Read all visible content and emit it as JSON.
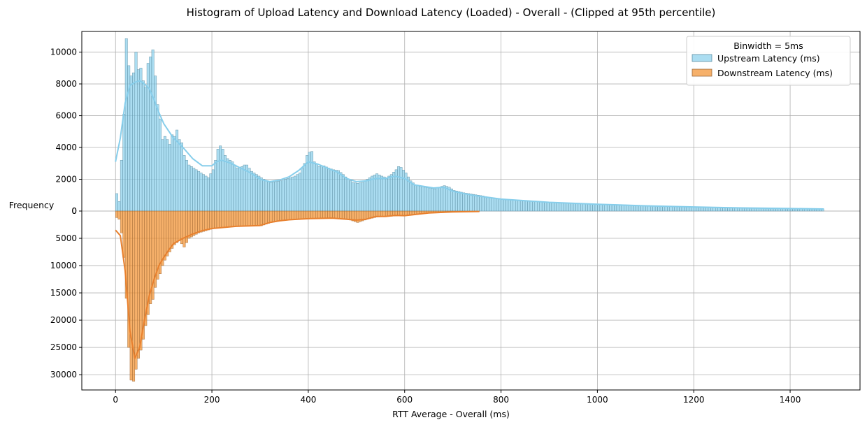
{
  "chart_data": {
    "type": "bar",
    "title": "Histogram of Upload Latency and Download Latency (Loaded)  - Overall - (Clipped at 95th percentile)",
    "xlabel": "RTT Average - Overall (ms)",
    "ylabel": "Frequency",
    "xlim": [
      -70,
      1545
    ],
    "upper_ylim": [
      0,
      11300
    ],
    "lower_ylim": [
      0,
      32800
    ],
    "binwidth": 5,
    "x_ticks": [
      0,
      200,
      400,
      600,
      800,
      1000,
      1200,
      1400
    ],
    "upper_y_ticks": [
      0,
      2000,
      4000,
      6000,
      8000,
      10000
    ],
    "lower_y_ticks": [
      0,
      5000,
      10000,
      15000,
      20000,
      25000,
      30000
    ],
    "grid": true,
    "legend": {
      "title": "Binwidth = 5ms",
      "placement": "top-right"
    },
    "series": [
      {
        "name": "Upstream Latency (ms)",
        "direction": "up",
        "color": "#87CEEB",
        "edge_color": "#5f8fa3",
        "kde_color": "#87CEEB",
        "x_range": [
          0,
          1470
        ],
        "kde": [
          [
            0,
            3100
          ],
          [
            10,
            4600
          ],
          [
            20,
            6800
          ],
          [
            30,
            7900
          ],
          [
            40,
            8100
          ],
          [
            50,
            8200
          ],
          [
            60,
            8000
          ],
          [
            70,
            7700
          ],
          [
            80,
            7000
          ],
          [
            90,
            6200
          ],
          [
            100,
            5500
          ],
          [
            120,
            4600
          ],
          [
            140,
            4000
          ],
          [
            160,
            3300
          ],
          [
            180,
            2850
          ],
          [
            200,
            2850
          ],
          [
            210,
            3100
          ],
          [
            220,
            3200
          ],
          [
            240,
            3000
          ],
          [
            260,
            2700
          ],
          [
            280,
            2400
          ],
          [
            300,
            2000
          ],
          [
            320,
            1850
          ],
          [
            340,
            1950
          ],
          [
            360,
            2150
          ],
          [
            380,
            2550
          ],
          [
            400,
            3100
          ],
          [
            420,
            2950
          ],
          [
            440,
            2700
          ],
          [
            460,
            2450
          ],
          [
            480,
            2050
          ],
          [
            500,
            1850
          ],
          [
            520,
            1900
          ],
          [
            540,
            2050
          ],
          [
            560,
            2050
          ],
          [
            580,
            2200
          ],
          [
            600,
            2050
          ],
          [
            620,
            1650
          ],
          [
            640,
            1550
          ],
          [
            660,
            1450
          ],
          [
            680,
            1500
          ],
          [
            700,
            1250
          ],
          [
            740,
            1000
          ],
          [
            800,
            750
          ],
          [
            900,
            550
          ],
          [
            1000,
            430
          ],
          [
            1100,
            330
          ],
          [
            1200,
            260
          ],
          [
            1300,
            200
          ],
          [
            1400,
            160
          ],
          [
            1470,
            130
          ]
        ],
        "bin_points": [
          [
            0,
            1100
          ],
          [
            5,
            600
          ],
          [
            10,
            3200
          ],
          [
            15,
            6100
          ],
          [
            20,
            10850
          ],
          [
            25,
            9150
          ],
          [
            30,
            8500
          ],
          [
            35,
            8700
          ],
          [
            40,
            10000
          ],
          [
            45,
            8900
          ],
          [
            50,
            9000
          ],
          [
            55,
            8200
          ],
          [
            60,
            7800
          ],
          [
            65,
            9300
          ],
          [
            70,
            9700
          ],
          [
            75,
            10150
          ],
          [
            80,
            8500
          ],
          [
            85,
            6700
          ],
          [
            90,
            5800
          ],
          [
            95,
            4500
          ],
          [
            100,
            4700
          ],
          [
            105,
            4500
          ],
          [
            110,
            4200
          ],
          [
            115,
            4800
          ],
          [
            120,
            4700
          ],
          [
            125,
            5100
          ],
          [
            130,
            4500
          ],
          [
            135,
            4300
          ],
          [
            140,
            3500
          ],
          [
            145,
            3200
          ],
          [
            150,
            2900
          ],
          [
            160,
            2700
          ],
          [
            170,
            2500
          ],
          [
            180,
            2300
          ],
          [
            190,
            2100
          ],
          [
            200,
            2600
          ],
          [
            205,
            3200
          ],
          [
            210,
            3900
          ],
          [
            215,
            4100
          ],
          [
            220,
            3900
          ],
          [
            225,
            3500
          ],
          [
            230,
            3300
          ],
          [
            240,
            3100
          ],
          [
            250,
            2700
          ],
          [
            260,
            2800
          ],
          [
            265,
            2900
          ],
          [
            270,
            2900
          ],
          [
            280,
            2500
          ],
          [
            290,
            2300
          ],
          [
            300,
            2100
          ],
          [
            310,
            1900
          ],
          [
            320,
            1800
          ],
          [
            330,
            1850
          ],
          [
            340,
            1900
          ],
          [
            350,
            2000
          ],
          [
            360,
            2100
          ],
          [
            370,
            2200
          ],
          [
            380,
            2400
          ],
          [
            390,
            3000
          ],
          [
            395,
            3500
          ],
          [
            400,
            3700
          ],
          [
            405,
            3750
          ],
          [
            410,
            3100
          ],
          [
            420,
            2800
          ],
          [
            430,
            2850
          ],
          [
            440,
            2700
          ],
          [
            450,
            2600
          ],
          [
            460,
            2550
          ],
          [
            470,
            2300
          ],
          [
            480,
            2000
          ],
          [
            490,
            1800
          ],
          [
            500,
            1750
          ],
          [
            510,
            1800
          ],
          [
            520,
            2000
          ],
          [
            530,
            2200
          ],
          [
            540,
            2350
          ],
          [
            550,
            2200
          ],
          [
            560,
            2100
          ],
          [
            570,
            2300
          ],
          [
            580,
            2600
          ],
          [
            585,
            2800
          ],
          [
            590,
            2750
          ],
          [
            600,
            2400
          ],
          [
            610,
            1900
          ],
          [
            620,
            1650
          ],
          [
            630,
            1550
          ],
          [
            640,
            1500
          ],
          [
            650,
            1450
          ],
          [
            660,
            1400
          ],
          [
            670,
            1500
          ],
          [
            680,
            1600
          ],
          [
            690,
            1500
          ],
          [
            700,
            1300
          ],
          [
            720,
            1150
          ],
          [
            740,
            1050
          ],
          [
            760,
            950
          ],
          [
            780,
            800
          ],
          [
            800,
            720
          ],
          [
            850,
            640
          ],
          [
            900,
            560
          ],
          [
            950,
            500
          ],
          [
            1000,
            440
          ],
          [
            1050,
            400
          ],
          [
            1100,
            340
          ],
          [
            1150,
            300
          ],
          [
            1200,
            270
          ],
          [
            1250,
            240
          ],
          [
            1300,
            210
          ],
          [
            1350,
            190
          ],
          [
            1400,
            165
          ],
          [
            1450,
            140
          ],
          [
            1465,
            130
          ]
        ]
      },
      {
        "name": "Downstream Latency (ms)",
        "direction": "down",
        "color": "#F28E2B",
        "edge_color": "#9e6a39",
        "kde_color": "#E8802E",
        "x_range": [
          0,
          755
        ],
        "kde": [
          [
            0,
            3500
          ],
          [
            10,
            4500
          ],
          [
            20,
            11000
          ],
          [
            30,
            22000
          ],
          [
            40,
            27000
          ],
          [
            50,
            25000
          ],
          [
            60,
            20000
          ],
          [
            70,
            15500
          ],
          [
            80,
            12500
          ],
          [
            90,
            10000
          ],
          [
            100,
            8500
          ],
          [
            110,
            7200
          ],
          [
            120,
            6000
          ],
          [
            140,
            5000
          ],
          [
            160,
            4200
          ],
          [
            180,
            3600
          ],
          [
            200,
            3200
          ],
          [
            250,
            2800
          ],
          [
            300,
            2650
          ],
          [
            320,
            2100
          ],
          [
            340,
            1800
          ],
          [
            360,
            1600
          ],
          [
            400,
            1400
          ],
          [
            450,
            1300
          ],
          [
            480,
            1500
          ],
          [
            500,
            1650
          ],
          [
            520,
            1500
          ],
          [
            540,
            1000
          ],
          [
            560,
            1000
          ],
          [
            580,
            800
          ],
          [
            600,
            850
          ],
          [
            650,
            350
          ],
          [
            700,
            150
          ],
          [
            755,
            80
          ]
        ],
        "bin_points": [
          [
            0,
            1200
          ],
          [
            5,
            1500
          ],
          [
            10,
            4000
          ],
          [
            15,
            8500
          ],
          [
            20,
            16000
          ],
          [
            25,
            25000
          ],
          [
            30,
            31000
          ],
          [
            35,
            31200
          ],
          [
            40,
            29000
          ],
          [
            45,
            27000
          ],
          [
            50,
            25500
          ],
          [
            55,
            23500
          ],
          [
            60,
            21000
          ],
          [
            65,
            19000
          ],
          [
            70,
            17000
          ],
          [
            75,
            16200
          ],
          [
            80,
            14000
          ],
          [
            85,
            12500
          ],
          [
            90,
            11500
          ],
          [
            95,
            10000
          ],
          [
            100,
            9000
          ],
          [
            110,
            7500
          ],
          [
            120,
            6200
          ],
          [
            130,
            5400
          ],
          [
            140,
            6600
          ],
          [
            150,
            5000
          ],
          [
            170,
            4000
          ],
          [
            200,
            3200
          ],
          [
            250,
            2800
          ],
          [
            300,
            2700
          ],
          [
            320,
            2100
          ],
          [
            350,
            1700
          ],
          [
            400,
            1400
          ],
          [
            450,
            1300
          ],
          [
            480,
            1500
          ],
          [
            500,
            2100
          ],
          [
            520,
            1500
          ],
          [
            540,
            1100
          ],
          [
            560,
            1000
          ],
          [
            580,
            900
          ],
          [
            600,
            800
          ],
          [
            620,
            600
          ],
          [
            650,
            350
          ],
          [
            700,
            150
          ],
          [
            755,
            80
          ]
        ]
      }
    ]
  }
}
